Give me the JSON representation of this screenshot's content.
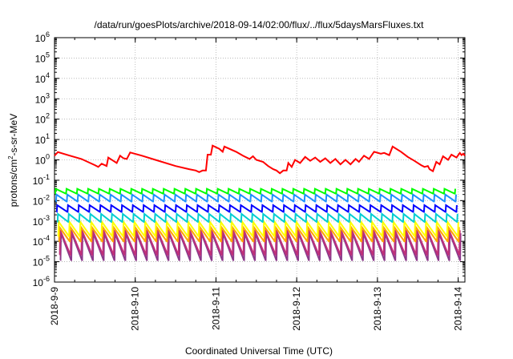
{
  "chart_data": {
    "type": "line",
    "title": "/data/run/goesPlots/archive/2018-09-14/02:00/flux/../flux/5daysMarsFluxes.txt",
    "xlabel": "Coordinated Universal Time (UTC)",
    "ylabel_parts": [
      "protons/cm",
      "2",
      "-s-sr-MeV"
    ],
    "x_axis": {
      "type": "date",
      "range": [
        "2018-09-09 00:00",
        "2018-09-14 02:00"
      ],
      "ticks": [
        "2018-9-9",
        "2018-9-10",
        "2018-9-11",
        "2018-9-12",
        "2018-9-13",
        "2018-9-14"
      ]
    },
    "y_axis": {
      "scale": "log",
      "range": [
        1e-06,
        1000000.0
      ],
      "tick_labels": [
        {
          "base": "10",
          "exp": "-6"
        },
        {
          "base": "10",
          "exp": "-5"
        },
        {
          "base": "10",
          "exp": "-4"
        },
        {
          "base": "10",
          "exp": "-3"
        },
        {
          "base": "10",
          "exp": "-2"
        },
        {
          "base": "10",
          "exp": "-1"
        },
        {
          "base": "10",
          "exp": "0"
        },
        {
          "base": "10",
          "exp": "1"
        },
        {
          "base": "10",
          "exp": "2"
        },
        {
          "base": "10",
          "exp": "3"
        },
        {
          "base": "10",
          "exp": "4"
        },
        {
          "base": "10",
          "exp": "5"
        },
        {
          "base": "10",
          "exp": "6"
        }
      ]
    },
    "grid": true,
    "legend": "none",
    "series": [
      {
        "color": "#ff0000",
        "points": [
          [
            "2018-09-09 00:00",
            1.6
          ],
          [
            "2018-09-09 01:00",
            2.4
          ],
          [
            "2018-09-09 04:00",
            1.7
          ],
          [
            "2018-09-09 08:00",
            1.1
          ],
          [
            "2018-09-09 12:00",
            0.55
          ],
          [
            "2018-09-09 13:00",
            0.45
          ],
          [
            "2018-09-09 14:00",
            0.65
          ],
          [
            "2018-09-09 15:30",
            0.5
          ],
          [
            "2018-09-09 16:00",
            1.3
          ],
          [
            "2018-09-09 17:30",
            0.9
          ],
          [
            "2018-09-09 18:30",
            0.7
          ],
          [
            "2018-09-09 19:30",
            1.6
          ],
          [
            "2018-09-09 20:30",
            1.2
          ],
          [
            "2018-09-09 21:30",
            1.1
          ],
          [
            "2018-09-09 22:30",
            2.3
          ],
          [
            "2018-09-10 02:00",
            1.6
          ],
          [
            "2018-09-10 06:00",
            1.0
          ],
          [
            "2018-09-10 12:00",
            0.5
          ],
          [
            "2018-09-10 16:00",
            0.35
          ],
          [
            "2018-09-10 18:00",
            0.3
          ],
          [
            "2018-09-10 19:00",
            0.25
          ],
          [
            "2018-09-10 20:00",
            0.3
          ],
          [
            "2018-09-10 21:00",
            0.3
          ],
          [
            "2018-09-10 21:30",
            1.8
          ],
          [
            "2018-09-10 22:30",
            1.8
          ],
          [
            "2018-09-10 23:00",
            5.0
          ],
          [
            "2018-09-11 01:00",
            3.5
          ],
          [
            "2018-09-11 02:00",
            2.5
          ],
          [
            "2018-09-11 02:30",
            4.5
          ],
          [
            "2018-09-11 06:00",
            2.5
          ],
          [
            "2018-09-11 08:00",
            1.6
          ],
          [
            "2018-09-11 10:00",
            1.1
          ],
          [
            "2018-09-11 11:00",
            1.5
          ],
          [
            "2018-09-11 12:00",
            1.0
          ],
          [
            "2018-09-11 14:00",
            0.8
          ],
          [
            "2018-09-11 15:30",
            0.5
          ],
          [
            "2018-09-11 17:00",
            0.35
          ],
          [
            "2018-09-11 18:00",
            0.3
          ],
          [
            "2018-09-11 19:00",
            0.22
          ],
          [
            "2018-09-11 20:00",
            0.3
          ],
          [
            "2018-09-11 21:00",
            0.3
          ],
          [
            "2018-09-11 21:30",
            0.7
          ],
          [
            "2018-09-11 22:30",
            0.45
          ],
          [
            "2018-09-11 23:30",
            1.0
          ],
          [
            "2018-09-12 01:00",
            0.7
          ],
          [
            "2018-09-12 02:30",
            1.4
          ],
          [
            "2018-09-12 04:00",
            0.9
          ],
          [
            "2018-09-12 05:30",
            1.3
          ],
          [
            "2018-09-12 07:00",
            0.8
          ],
          [
            "2018-09-12 08:30",
            1.2
          ],
          [
            "2018-09-12 10:00",
            0.7
          ],
          [
            "2018-09-12 11:30",
            1.1
          ],
          [
            "2018-09-12 13:00",
            0.6
          ],
          [
            "2018-09-12 14:30",
            1.0
          ],
          [
            "2018-09-12 16:00",
            0.6
          ],
          [
            "2018-09-12 17:30",
            1.1
          ],
          [
            "2018-09-12 18:30",
            0.8
          ],
          [
            "2018-09-12 20:00",
            1.6
          ],
          [
            "2018-09-12 21:30",
            1.1
          ],
          [
            "2018-09-12 23:00",
            2.5
          ],
          [
            "2018-09-13 01:00",
            2.0
          ],
          [
            "2018-09-13 02:00",
            2.2
          ],
          [
            "2018-09-13 03:30",
            1.7
          ],
          [
            "2018-09-13 04:30",
            4.5
          ],
          [
            "2018-09-13 07:00",
            2.5
          ],
          [
            "2018-09-13 09:00",
            1.4
          ],
          [
            "2018-09-13 11:00",
            0.9
          ],
          [
            "2018-09-13 13:00",
            0.55
          ],
          [
            "2018-09-13 14:00",
            0.45
          ],
          [
            "2018-09-13 15:00",
            0.5
          ],
          [
            "2018-09-13 15:30",
            0.35
          ],
          [
            "2018-09-13 16:30",
            0.28
          ],
          [
            "2018-09-13 17:30",
            0.8
          ],
          [
            "2018-09-13 18:30",
            0.6
          ],
          [
            "2018-09-13 19:30",
            1.5
          ],
          [
            "2018-09-13 21:00",
            1.0
          ],
          [
            "2018-09-13 22:00",
            1.8
          ],
          [
            "2018-09-13 23:30",
            1.3
          ],
          [
            "2018-09-14 00:30",
            2.2
          ],
          [
            "2018-09-14 01:00",
            1.7
          ],
          [
            "2018-09-14 01:30",
            2.0
          ],
          [
            "2018-09-14 02:00",
            1.6
          ]
        ]
      },
      {
        "color": "#00ff00",
        "sawtooth": {
          "high": 0.038,
          "low": 0.022,
          "cycles": 38
        }
      },
      {
        "color": "#1e90ff",
        "sawtooth": {
          "high": 0.02,
          "low": 0.009,
          "cycles": 38
        }
      },
      {
        "color": "#0000ff",
        "sawtooth": {
          "high": 0.006,
          "low": 0.0028,
          "cycles": 38
        }
      },
      {
        "color": "#00ced1",
        "sawtooth": {
          "high": 0.0022,
          "low": 0.0009,
          "cycles": 38
        }
      },
      {
        "color": "#ffff00",
        "sawtooth": {
          "high": 0.0009,
          "low": 0.00018,
          "cycles": 38
        }
      },
      {
        "color": "#ffa500",
        "sawtooth": {
          "high": 0.0005,
          "low": 0.0001,
          "cycles": 38
        }
      },
      {
        "color": "#c0307a",
        "sawtooth": {
          "high": 0.00035,
          "low": 2.2e-05,
          "cycles": 38
        }
      },
      {
        "color": "#8b3a8b",
        "sawtooth": {
          "high": 0.00025,
          "low": 1.2e-05,
          "cycles": 38
        }
      }
    ]
  }
}
